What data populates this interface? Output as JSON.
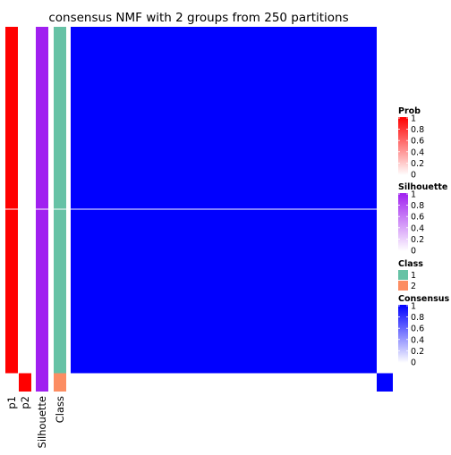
{
  "chart_data": {
    "type": "heatmap",
    "title": "consensus NMF with 2 groups from 250 partitions",
    "n_samples": 20,
    "split_after_sample": 9,
    "tracks": [
      {
        "key": "p1",
        "label": "p1",
        "values": [
          1,
          1,
          1,
          1,
          1,
          1,
          1,
          1,
          1,
          1,
          1,
          1,
          1,
          1,
          1,
          1,
          1,
          1,
          1,
          0
        ]
      },
      {
        "key": "p2",
        "label": "p2",
        "values": [
          0,
          0,
          0,
          0,
          0,
          0,
          0,
          0,
          0,
          0,
          0,
          0,
          0,
          0,
          0,
          0,
          0,
          0,
          0,
          1
        ]
      },
      {
        "key": "silhouette",
        "label": "Silhouette",
        "values": [
          1,
          1,
          1,
          1,
          1,
          1,
          1,
          1,
          1,
          1,
          1,
          1,
          1,
          1,
          1,
          1,
          1,
          1,
          1,
          1
        ]
      },
      {
        "key": "class",
        "label": "Class",
        "values": [
          1,
          1,
          1,
          1,
          1,
          1,
          1,
          1,
          1,
          1,
          1,
          1,
          1,
          1,
          1,
          1,
          1,
          1,
          1,
          2
        ]
      }
    ],
    "consensus": {
      "group_1_size": 19,
      "group_1_value": 1,
      "group_2_size": 1,
      "group_2_value": 1,
      "off_diagonal_value": 0
    },
    "legends": [
      {
        "title": "Prob",
        "type": "continuous",
        "ticks": [
          "1",
          "0.8",
          "0.6",
          "0.4",
          "0.2",
          "0"
        ],
        "color_low": "#ffffff",
        "color_high": "#ff0000"
      },
      {
        "title": "Silhouette",
        "type": "continuous",
        "ticks": [
          "1",
          "0.8",
          "0.6",
          "0.4",
          "0.2",
          "0"
        ],
        "color_low": "#ffffff",
        "color_high": "#a020f0"
      },
      {
        "title": "Class",
        "type": "discrete",
        "items": [
          {
            "label": "1",
            "color": "#66c2a5"
          },
          {
            "label": "2",
            "color": "#fc8d62"
          }
        ]
      },
      {
        "title": "Consensus",
        "type": "continuous",
        "ticks": [
          "1",
          "0.8",
          "0.6",
          "0.4",
          "0.2",
          "0"
        ],
        "color_low": "#ffffff",
        "color_high": "#0000ff"
      }
    ],
    "colors": {
      "prob": "#ff0000",
      "silhouette": "#a020f0",
      "class_1": "#66c2a5",
      "class_2": "#fc8d62",
      "consensus": "#0000ff",
      "background": "#ffffff"
    },
    "legend_placement": "right",
    "grid": false
  }
}
